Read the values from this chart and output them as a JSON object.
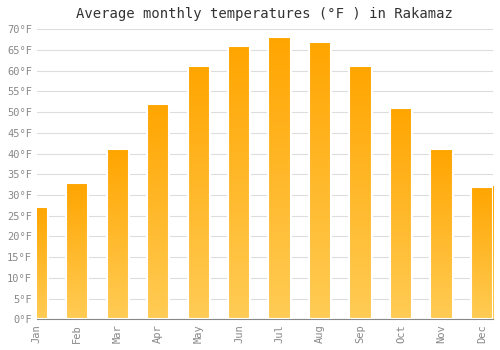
{
  "title": "Average monthly temperatures (°F ) in Rakamaz",
  "months": [
    "Jan",
    "Feb",
    "Mar",
    "Apr",
    "May",
    "Jun",
    "Jul",
    "Aug",
    "Sep",
    "Oct",
    "Nov",
    "Dec"
  ],
  "values": [
    27,
    33,
    41,
    52,
    61,
    66,
    68,
    67,
    61,
    51,
    41,
    32
  ],
  "bar_color_top": "#FFB300",
  "bar_color_bottom": "#FFCC44",
  "bar_edge_color": "#FFFFFF",
  "background_color": "#FFFFFF",
  "grid_color": "#DDDDDD",
  "ylim": [
    0,
    70
  ],
  "yticks": [
    0,
    5,
    10,
    15,
    20,
    25,
    30,
    35,
    40,
    45,
    50,
    55,
    60,
    65,
    70
  ],
  "title_fontsize": 10,
  "tick_fontsize": 7.5,
  "tick_label_color": "#888888",
  "bar_width": 0.55
}
